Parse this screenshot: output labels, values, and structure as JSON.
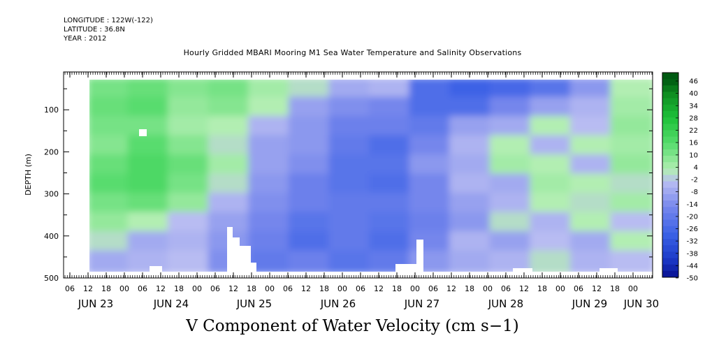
{
  "header": {
    "longitude": "LONGITUDE : 122W(-122)",
    "latitude": "LATITUDE : 36.8N",
    "year": "YEAR : 2012",
    "title": "Hourly Gridded MBARI Mooring M1 Sea Water Temperature and Salinity Observations"
  },
  "chart_data": {
    "type": "heatmap",
    "title": "Hourly Gridded MBARI Mooring M1 Sea Water Temperature and Salinity Observations",
    "xlabel": "V Component of Water Velocity (cm s−1)",
    "ylabel": "DEPTH (m)",
    "ylim": [
      500,
      0
    ],
    "y_ticks": [
      100,
      200,
      300,
      400,
      500
    ],
    "x_hour_ticks": [
      "06",
      "12",
      "18",
      "00",
      "06",
      "12",
      "18",
      "00",
      "06",
      "12",
      "18",
      "00",
      "06",
      "12",
      "18",
      "00",
      "06",
      "12",
      "18",
      "00",
      "06",
      "12",
      "18",
      "00",
      "06",
      "12",
      "18",
      "00",
      "06",
      "12",
      "18",
      "00"
    ],
    "x_day_labels": [
      "JUN 23",
      "JUN 24",
      "JUN 25",
      "JUN 26",
      "JUN 27",
      "JUN 28",
      "JUN 29",
      "JUN 30"
    ],
    "colorbar": {
      "labels": [
        "46",
        "40",
        "34",
        "28",
        "22",
        "16",
        "10",
        "4",
        "-2",
        "-8",
        "-14",
        "-20",
        "-26",
        "-32",
        "-38",
        "-44",
        "-50"
      ]
    },
    "data": {
      "columns": [
        "JUN 23 12",
        "JUN 24 00",
        "JUN 24 12",
        "JUN 25 00",
        "JUN 25 12",
        "JUN 26 00",
        "JUN 26 12",
        "JUN 27 00",
        "JUN 27 12",
        "JUN 28 00",
        "JUN 28 12",
        "JUN 29 00",
        "JUN 29 12",
        "JUN 30 00"
      ],
      "depth_bands": [
        25,
        75,
        125,
        175,
        225,
        275,
        325,
        375,
        425,
        475
      ],
      "values": [
        [
          12,
          14,
          10,
          12,
          6,
          2,
          -6,
          -4,
          -22,
          -26,
          -24,
          -20,
          -10,
          4
        ],
        [
          14,
          16,
          8,
          10,
          4,
          -8,
          -12,
          -14,
          -22,
          -22,
          -14,
          -8,
          -4,
          6
        ],
        [
          12,
          12,
          6,
          4,
          -4,
          -10,
          -16,
          -16,
          -18,
          -8,
          -6,
          4,
          -2,
          8
        ],
        [
          10,
          16,
          10,
          2,
          -8,
          -10,
          -18,
          -22,
          -14,
          -4,
          4,
          -4,
          4,
          6
        ],
        [
          14,
          18,
          14,
          6,
          -8,
          -12,
          -20,
          -20,
          -10,
          -6,
          6,
          4,
          -4,
          8
        ],
        [
          16,
          18,
          12,
          2,
          -10,
          -16,
          -20,
          -22,
          -14,
          -4,
          -6,
          6,
          4,
          2
        ],
        [
          12,
          14,
          8,
          -4,
          -12,
          -16,
          -18,
          -18,
          -14,
          -8,
          -4,
          4,
          2,
          6
        ],
        [
          8,
          4,
          -2,
          -8,
          -14,
          -20,
          -18,
          -20,
          -16,
          -10,
          2,
          -4,
          4,
          -2
        ],
        [
          2,
          -6,
          -4,
          -10,
          -16,
          -22,
          -18,
          -22,
          -14,
          -4,
          -8,
          -2,
          -6,
          4
        ],
        [
          -6,
          -4,
          -2,
          -12,
          -18,
          -16,
          -20,
          -18,
          -10,
          -6,
          -4,
          2,
          -4,
          -2
        ]
      ]
    }
  }
}
